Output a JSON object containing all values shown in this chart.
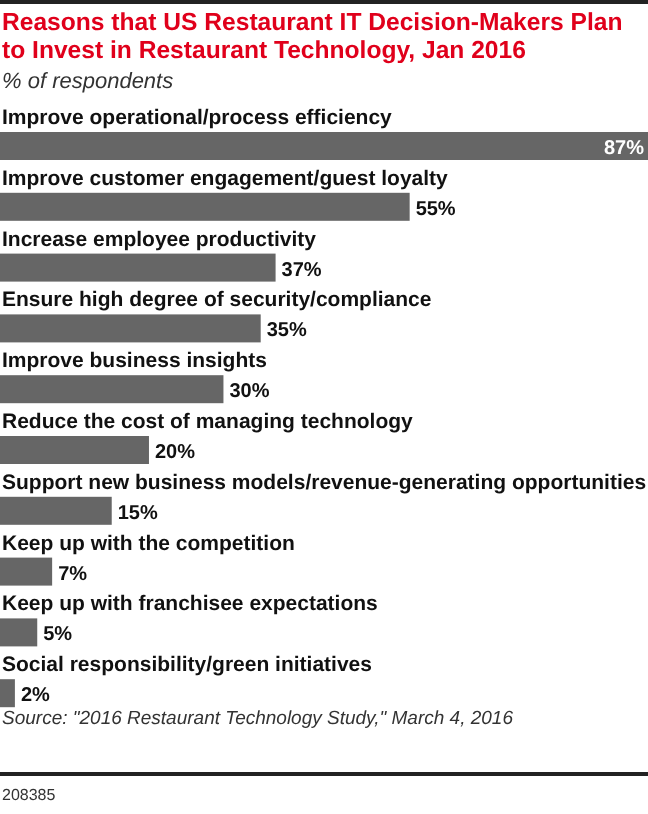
{
  "chart_data": {
    "type": "bar",
    "orientation": "horizontal",
    "title": "Reasons that US Restaurant IT Decision-Makers Plan to Invest in Restaurant Technology, Jan 2016",
    "subtitle": "% of respondents",
    "categories": [
      "Improve operational/process efficiency",
      "Improve customer engagement/guest loyalty",
      "Increase employee productivity",
      "Ensure high degree of security/compliance",
      "Improve business insights",
      "Reduce the cost of managing technology",
      "Support new business models/revenue-generating opportunities",
      "Keep up with the competition",
      "Keep up with franchisee expectations",
      "Social responsibility/green initiatives"
    ],
    "values": [
      87,
      55,
      37,
      35,
      30,
      20,
      15,
      7,
      5,
      2
    ],
    "value_labels": [
      "87%",
      "55%",
      "37%",
      "35%",
      "30%",
      "20%",
      "15%",
      "7%",
      "5%",
      "2%"
    ],
    "color": "#666666",
    "annotations": [
      "Source: \"2016 Restaurant Technology Study,\" March 4, 2016",
      "208385"
    ]
  }
}
